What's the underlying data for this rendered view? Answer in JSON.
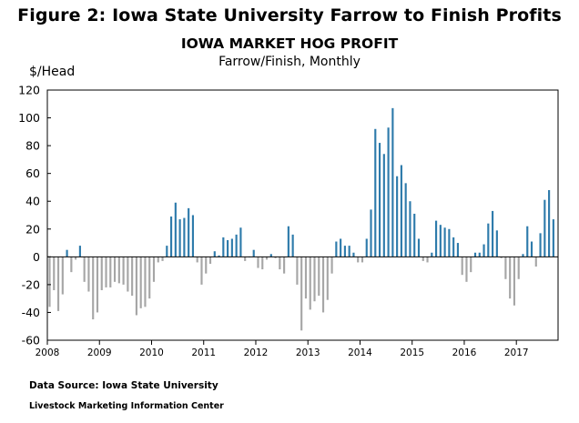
{
  "figure_title": "Figure 2: Iowa State University Farrow to Finish Profits",
  "source": "Data Source:  Iowa State University",
  "center": "Livestock Marketing Information Center",
  "colors": {
    "positive": "#2e7bab",
    "negative": "#a6a6a6",
    "axis": "#000000"
  },
  "chart_data": {
    "type": "bar",
    "title": "IOWA MARKET HOG PROFIT",
    "subtitle": "Farrow/Finish, Monthly",
    "ylabel": "$/Head",
    "xlabel": "",
    "ylim": [
      -60,
      120
    ],
    "yticks": [
      "120",
      "100",
      "80",
      "60",
      "40",
      "20",
      "0",
      "-20",
      "-40",
      "-60"
    ],
    "xtick_labels": [
      "2008",
      "2009",
      "2010",
      "2011",
      "2012",
      "2013",
      "2014",
      "2015",
      "2016",
      "2017"
    ],
    "grid": false,
    "start": "2008-01",
    "frequency": "monthly",
    "values": [
      -36,
      -24,
      -39,
      -27,
      5,
      -11,
      -2,
      8,
      -18,
      -25,
      -45,
      -40,
      -24,
      -22,
      -22,
      -18,
      -19,
      -20,
      -25,
      -28,
      -42,
      -37,
      -36,
      -30,
      -18,
      -4,
      -3,
      8,
      29,
      39,
      27,
      28,
      35,
      30,
      -4,
      -20,
      -12,
      -5,
      4,
      1,
      14,
      12,
      13,
      16,
      21,
      -3,
      0,
      5,
      -8,
      -9,
      -2,
      2,
      -1,
      -9,
      -12,
      22,
      16,
      -20,
      -53,
      -30,
      -38,
      -32,
      -28,
      -40,
      -31,
      -12,
      11,
      13,
      8,
      8,
      3,
      -4,
      -4,
      13,
      34,
      92,
      82,
      74,
      93,
      107,
      58,
      66,
      53,
      40,
      31,
      13,
      -3,
      -4,
      3,
      26,
      23,
      21,
      20,
      14,
      10,
      -13,
      -18,
      -11,
      3,
      3,
      9,
      24,
      33,
      19,
      -1,
      -16,
      -30,
      -35,
      -16,
      2,
      22,
      11,
      -7,
      17,
      41,
      48,
      27
    ]
  }
}
